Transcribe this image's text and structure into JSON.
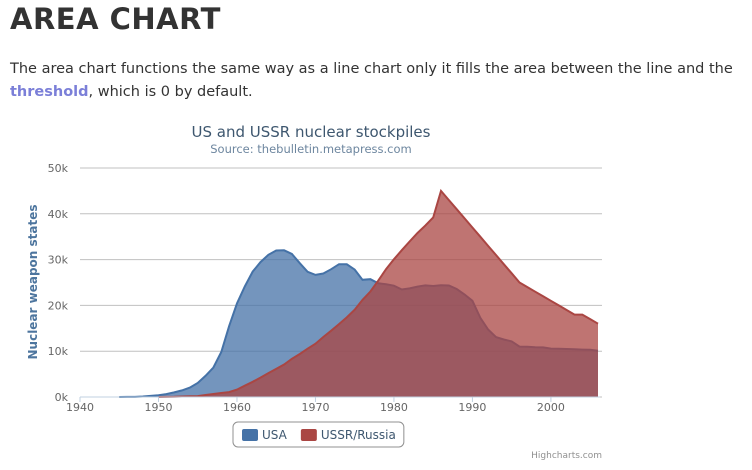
{
  "header": {
    "title": "AREA CHART"
  },
  "intro": {
    "text_before": "The area chart functions the same way as a line chart only it fills the area between the line and the ",
    "link": "threshold",
    "text_after": ", which is 0 by default."
  },
  "chart_data": {
    "type": "area",
    "title": "US and USSR nuclear stockpiles",
    "subtitle": "Source: thebulletin.metapress.com",
    "y_label": "Nuclear weapon states",
    "credits": "Highcharts.com",
    "x": [
      1940,
      1941,
      1942,
      1943,
      1944,
      1945,
      1946,
      1947,
      1948,
      1949,
      1950,
      1951,
      1952,
      1953,
      1954,
      1955,
      1956,
      1957,
      1958,
      1959,
      1960,
      1961,
      1962,
      1963,
      1964,
      1965,
      1966,
      1967,
      1968,
      1969,
      1970,
      1971,
      1972,
      1973,
      1974,
      1975,
      1976,
      1977,
      1978,
      1979,
      1980,
      1981,
      1982,
      1983,
      1984,
      1985,
      1986,
      1987,
      1988,
      1989,
      1990,
      1991,
      1992,
      1993,
      1994,
      1995,
      1996,
      1997,
      1998,
      1999,
      2000,
      2001,
      2002,
      2003,
      2004,
      2005,
      2006
    ],
    "series": [
      {
        "name": "USA",
        "color": "#4572A7",
        "values": [
          null,
          null,
          null,
          null,
          null,
          6,
          11,
          32,
          110,
          235,
          369,
          640,
          1005,
          1436,
          2063,
          3057,
          4618,
          6444,
          9822,
          15468,
          20434,
          24126,
          27387,
          29459,
          31056,
          31982,
          32040,
          31233,
          29224,
          27342,
          26662,
          26956,
          27912,
          28999,
          28965,
          27826,
          25579,
          25722,
          24826,
          24605,
          24304,
          23464,
          23708,
          24099,
          24357,
          24237,
          24401,
          24344,
          23586,
          22380,
          21004,
          17287,
          14747,
          13076,
          12555,
          12144,
          11009,
          10950,
          10871,
          10824,
          10577,
          10527,
          10475,
          10421,
          10358,
          10295,
          10104
        ]
      },
      {
        "name": "USSR/Russia",
        "color": "#AA4643",
        "values": [
          null,
          null,
          null,
          null,
          null,
          null,
          null,
          null,
          null,
          null,
          5,
          25,
          50,
          120,
          150,
          200,
          426,
          660,
          869,
          1060,
          1605,
          2471,
          3322,
          4238,
          5221,
          6129,
          7089,
          8339,
          9399,
          10538,
          11643,
          13092,
          14478,
          15915,
          17385,
          19055,
          21205,
          23044,
          25393,
          27935,
          30062,
          32049,
          33952,
          35804,
          37431,
          39197,
          45000,
          43000,
          41000,
          39000,
          37000,
          35000,
          33000,
          31000,
          29000,
          27000,
          25000,
          24000,
          23000,
          22000,
          21000,
          20000,
          19000,
          18000,
          18000,
          17000,
          16000
        ]
      }
    ],
    "xlim": [
      1940,
      2006
    ],
    "xticks": [
      1940,
      1950,
      1960,
      1970,
      1980,
      1990,
      2000
    ],
    "ylim": [
      0,
      50000
    ],
    "yticks": [
      {
        "value": 0,
        "label": "0k"
      },
      {
        "value": 10000,
        "label": "10k"
      },
      {
        "value": 20000,
        "label": "20k"
      },
      {
        "value": 30000,
        "label": "30k"
      },
      {
        "value": 40000,
        "label": "40k"
      },
      {
        "value": 50000,
        "label": "50k"
      }
    ],
    "grid": true,
    "legend": "bottom"
  }
}
